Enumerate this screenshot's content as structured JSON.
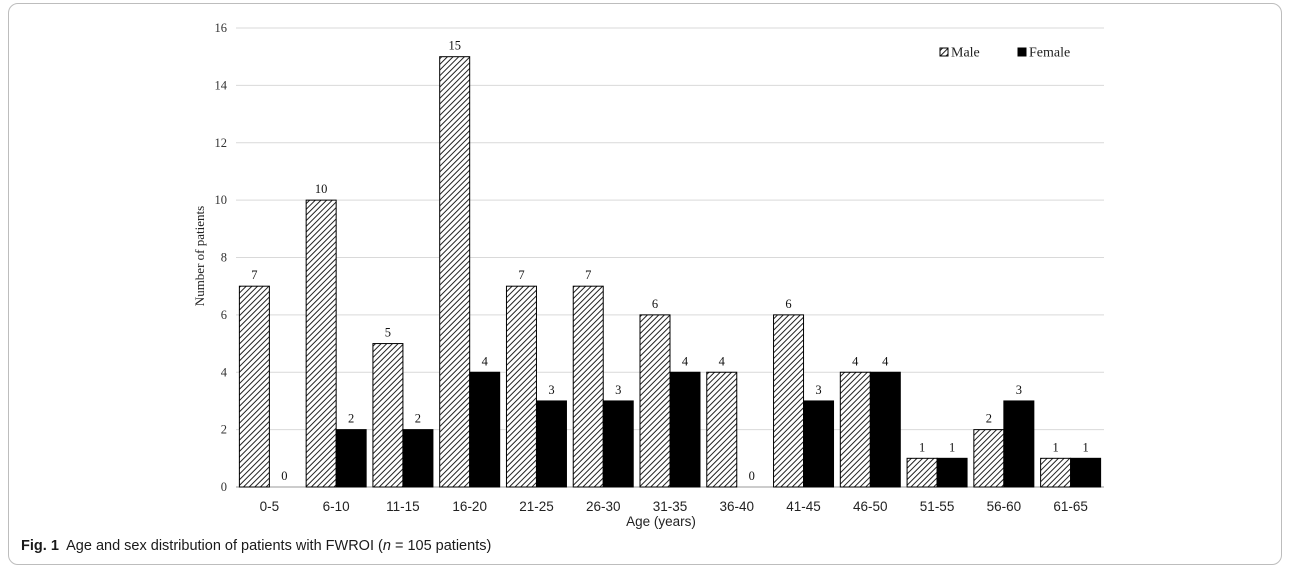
{
  "figure": {
    "label": "Fig. 1",
    "label_word": "Fig.",
    "label_num": "1",
    "caption_text": "Age and sex distribution of patients with FWROI (",
    "caption_n": "n",
    "caption_rest": " = 105 patients)"
  },
  "chart_data": {
    "type": "bar",
    "categories": [
      "0-5",
      "6-10",
      "11-15",
      "16-20",
      "21-25",
      "26-30",
      "31-35",
      "36-40",
      "41-45",
      "46-50",
      "51-55",
      "56-60",
      "61-65"
    ],
    "series": [
      {
        "name": "Male",
        "values": [
          7,
          10,
          5,
          15,
          7,
          7,
          6,
          4,
          6,
          4,
          1,
          2,
          1
        ],
        "color": "#ffffff",
        "pattern": "diagonal-hatch"
      },
      {
        "name": "Female",
        "values": [
          0,
          2,
          2,
          4,
          3,
          3,
          4,
          0,
          3,
          4,
          1,
          3,
          1
        ],
        "color": "#000000"
      }
    ],
    "xlabel": "Age (years)",
    "ylabel": "Number of patients",
    "ylim": [
      0,
      16
    ],
    "yticks": [
      "0",
      "2",
      "4",
      "6",
      "8",
      "10",
      "12",
      "14",
      "16"
    ],
    "grid": true,
    "legend": "top-right",
    "data_labels": true
  }
}
